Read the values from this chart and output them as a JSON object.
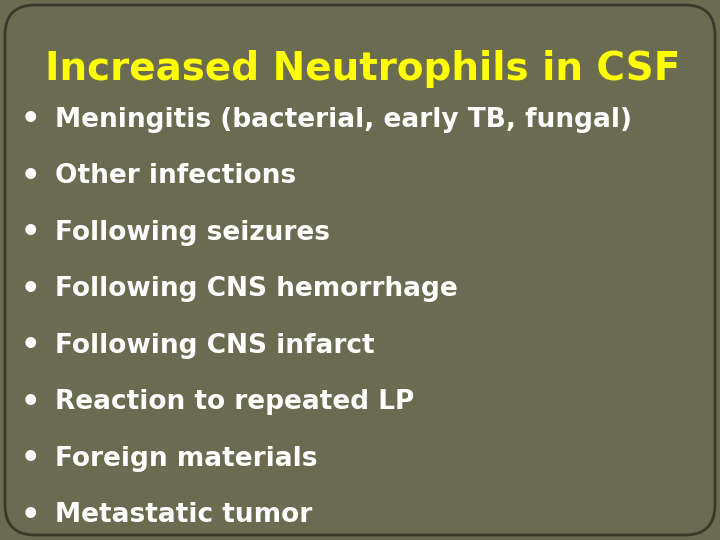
{
  "title": "Increased Neutrophils in CSF",
  "title_color": "#FFFF00",
  "title_fontsize": 28,
  "title_fontweight": "bold",
  "background_color": "#6B6B52",
  "border_color": "#3A3A2A",
  "bullet_color": "#FFFFFF",
  "text_color": "#FFFFFF",
  "text_fontsize": 19,
  "text_fontweight": "bold",
  "bullet_items": [
    "Meningitis (bacterial, early TB, fungal)",
    "Other infections",
    "Following seizures",
    "Following CNS hemorrhage",
    "Following CNS infarct",
    "Reaction to repeated LP",
    "Foreign materials",
    "Metastatic tumor"
  ]
}
